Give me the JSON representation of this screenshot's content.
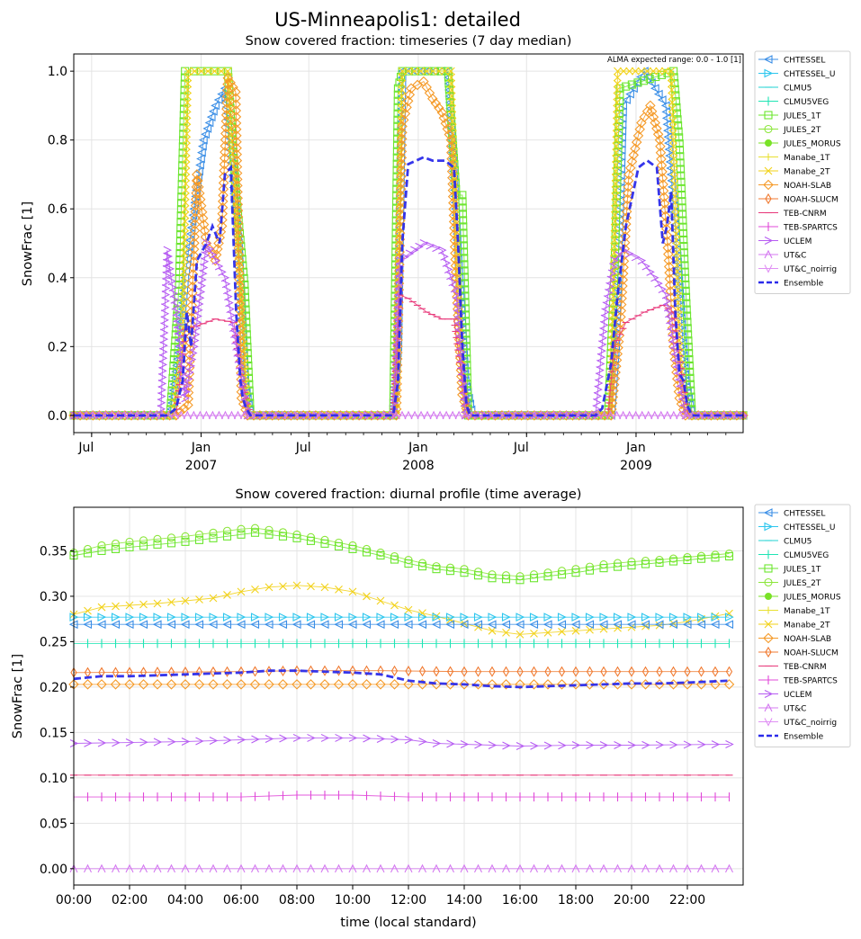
{
  "suptitle": "US-Minneapolis1: detailed",
  "legend_entries": [
    "CHTESSEL",
    "CHTESSEL_U",
    "CLMU5",
    "CLMU5VEG",
    "JULES_1T",
    "JULES_2T",
    "JULES_MORUS",
    "Manabe_1T",
    "Manabe_2T",
    "NOAH-SLAB",
    "NOAH-SLUCM",
    "TEB-CNRM",
    "TEB-SPARTCS",
    "UCLEM",
    "UT&C",
    "UT&C_noirrig",
    "Ensemble"
  ],
  "colors": {
    "CHTESSEL": "#3a8ee6",
    "CHTESSEL_U": "#2cc6ee",
    "CLMU5": "#22d3d3",
    "CLMU5VEG": "#1ee4b4",
    "JULES_1T": "#6be62e",
    "JULES_2T": "#8be63a",
    "JULES_MORUS": "#79e226",
    "Manabe_1T": "#e8e030",
    "Manabe_2T": "#f2d21a",
    "NOAH-SLAB": "#f59a28",
    "NOAH-SLUCM": "#f07a30",
    "TEB-CNRM": "#e8387a",
    "TEB-SPARTCS": "#e048d8",
    "UCLEM": "#b65cf2",
    "UT&C": "#d478f0",
    "UT&C_noirrig": "#e090f4",
    "Ensemble": "#2b2bea"
  },
  "chart_data": [
    {
      "type": "line",
      "title": "Snow covered fraction: timeseries (7 day median)",
      "xlabel": "",
      "ylabel": "SnowFrac [1]",
      "annotation": "ALMA expected range: 0.0 - 1.0 [1]",
      "x_ticks": [
        "Jul",
        "Jan\n2007",
        "Jul",
        "Jan\n2008",
        "Jul",
        "Jan\n2009"
      ],
      "yticks": [
        "0.0",
        "0.2",
        "0.4",
        "0.6",
        "0.8",
        "1.0"
      ],
      "ylim": [
        -0.05,
        1.05
      ],
      "xlim": [
        "2006-06-01",
        "2009-06-30"
      ],
      "grid": true,
      "legend": "outside-right",
      "series": [
        {
          "name": "CHTESSEL",
          "x": [
            "2006-06-01",
            "2006-11-10",
            "2006-11-25",
            "2006-12-05",
            "2006-12-20",
            "2007-01-05",
            "2007-01-25",
            "2007-02-10",
            "2007-03-05",
            "2007-03-15",
            "2007-03-25",
            "2007-06-01",
            "2007-11-20",
            "2007-11-28",
            "2007-12-05",
            "2008-01-15",
            "2008-02-20",
            "2008-03-10",
            "2008-03-20",
            "2008-04-01",
            "2008-06-01",
            "2008-11-20",
            "2008-11-28",
            "2008-12-10",
            "2009-01-15",
            "2009-02-20",
            "2009-03-10",
            "2009-03-25",
            "2009-04-05",
            "2009-06-30"
          ],
          "values": [
            0,
            0,
            0.2,
            0.4,
            0.6,
            0.8,
            0.9,
            0.95,
            0.5,
            0.1,
            0,
            0,
            0,
            0.2,
            1,
            1,
            1,
            0.4,
            0.1,
            0,
            0,
            0,
            0.2,
            0.9,
            1,
            0.9,
            0.5,
            0.1,
            0,
            0
          ]
        },
        {
          "name": "JULES_1T",
          "x": [
            "2006-06-01",
            "2006-11-10",
            "2006-11-25",
            "2006-12-05",
            "2006-12-20",
            "2007-02-15",
            "2007-03-01",
            "2007-03-15",
            "2007-03-25",
            "2007-06-01",
            "2007-11-20",
            "2007-11-28",
            "2007-12-05",
            "2008-02-20",
            "2008-03-05",
            "2008-03-15",
            "2008-03-25",
            "2008-06-01",
            "2008-11-15",
            "2008-11-25",
            "2008-12-05",
            "2009-03-05",
            "2009-03-15",
            "2009-03-25",
            "2009-04-05",
            "2009-06-30"
          ],
          "values": [
            0,
            0,
            0.38,
            1,
            1,
            1,
            0.64,
            0.38,
            0,
            0,
            0,
            0.95,
            1,
            1,
            0.64,
            0.64,
            0,
            0,
            0,
            0.38,
            0.95,
            1,
            0.79,
            0.38,
            0,
            0
          ]
        },
        {
          "name": "Manabe_2T",
          "x": [
            "2006-06-01",
            "2006-11-15",
            "2006-12-01",
            "2006-12-10",
            "2007-02-15",
            "2007-03-10",
            "2007-03-20",
            "2007-06-01",
            "2007-11-25",
            "2007-12-05",
            "2008-02-25",
            "2008-03-10",
            "2008-03-20",
            "2008-06-01",
            "2008-11-20",
            "2008-12-01",
            "2009-03-01",
            "2009-03-15",
            "2009-03-25",
            "2009-06-30"
          ],
          "values": [
            0,
            0,
            0.2,
            1,
            1,
            0.3,
            0,
            0,
            0,
            1,
            1,
            0.2,
            0,
            0,
            0,
            1,
            1,
            0.2,
            0,
            0
          ]
        },
        {
          "name": "NOAH-SLAB",
          "x": [
            "2006-06-01",
            "2006-11-20",
            "2006-12-10",
            "2006-12-25",
            "2007-01-10",
            "2007-01-25",
            "2007-02-05",
            "2007-02-15",
            "2007-02-28",
            "2007-03-10",
            "2007-03-20",
            "2007-06-01",
            "2007-11-25",
            "2007-12-05",
            "2007-12-20",
            "2008-01-10",
            "2008-01-25",
            "2008-02-10",
            "2008-02-25",
            "2008-03-05",
            "2008-03-15",
            "2008-03-25",
            "2008-06-01",
            "2008-11-20",
            "2008-12-05",
            "2008-12-20",
            "2009-01-10",
            "2009-01-25",
            "2009-02-10",
            "2009-02-25",
            "2009-03-05",
            "2009-03-15",
            "2009-03-25",
            "2009-06-30"
          ],
          "values": [
            0,
            0,
            0.03,
            0.7,
            0.5,
            0.45,
            0.55,
            0.98,
            0.94,
            0.05,
            0,
            0,
            0,
            0.84,
            0.95,
            0.97,
            0.92,
            0.88,
            0.8,
            0.38,
            0.06,
            0,
            0,
            0,
            0.25,
            0.7,
            0.85,
            0.9,
            0.8,
            0.45,
            0.2,
            0.05,
            0,
            0
          ]
        },
        {
          "name": "TEB-CNRM",
          "x": [
            "2006-06-01",
            "2006-11-20",
            "2006-12-05",
            "2006-12-25",
            "2007-01-25",
            "2007-02-25",
            "2007-03-10",
            "2007-03-25",
            "2007-06-01",
            "2007-11-20",
            "2007-12-01",
            "2007-12-15",
            "2008-01-15",
            "2008-02-10",
            "2008-03-01",
            "2008-03-15",
            "2008-03-25",
            "2008-06-01",
            "2008-11-15",
            "2008-11-25",
            "2008-12-15",
            "2009-01-15",
            "2009-02-15",
            "2009-03-05",
            "2009-03-20",
            "2009-03-30",
            "2009-06-30"
          ],
          "values": [
            0,
            0,
            0.25,
            0.26,
            0.28,
            0.27,
            0.1,
            0,
            0,
            0,
            0.35,
            0.34,
            0.3,
            0.28,
            0.28,
            0.1,
            0,
            0,
            0,
            0.2,
            0.27,
            0.3,
            0.32,
            0.3,
            0.1,
            0,
            0
          ]
        },
        {
          "name": "UCLEM",
          "x": [
            "2006-06-01",
            "2006-10-25",
            "2006-11-05",
            "2006-11-20",
            "2006-12-05",
            "2006-12-20",
            "2007-01-10",
            "2007-02-10",
            "2007-03-01",
            "2007-03-20",
            "2007-06-01",
            "2007-11-20",
            "2007-12-01",
            "2008-01-10",
            "2008-02-10",
            "2008-03-05",
            "2008-03-20",
            "2008-06-01",
            "2008-10-25",
            "2008-11-10",
            "2008-11-25",
            "2008-12-10",
            "2009-01-10",
            "2009-02-01",
            "2009-02-20",
            "2009-03-10",
            "2009-03-25",
            "2009-06-30"
          ],
          "values": [
            0,
            0,
            0.48,
            0.3,
            0.05,
            0.2,
            0.5,
            0.4,
            0.2,
            0,
            0,
            0,
            0.45,
            0.5,
            0.48,
            0.35,
            0,
            0,
            0,
            0.3,
            0.45,
            0.48,
            0.45,
            0.4,
            0.35,
            0.15,
            0,
            0
          ]
        },
        {
          "name": "UT&C",
          "x": [
            "2006-06-01",
            "2009-06-30"
          ],
          "values": [
            0,
            0
          ]
        },
        {
          "name": "Ensemble",
          "x": [
            "2006-06-01",
            "2006-11-05",
            "2006-11-20",
            "2006-12-01",
            "2006-12-08",
            "2006-12-15",
            "2006-12-25",
            "2007-01-10",
            "2007-01-20",
            "2007-02-01",
            "2007-02-10",
            "2007-02-20",
            "2007-03-01",
            "2007-03-08",
            "2007-03-12",
            "2007-03-18",
            "2007-03-25",
            "2007-06-01",
            "2007-11-20",
            "2007-11-28",
            "2007-12-05",
            "2007-12-15",
            "2008-01-10",
            "2008-01-25",
            "2008-02-15",
            "2008-03-01",
            "2008-03-08",
            "2008-03-15",
            "2008-03-22",
            "2008-03-28",
            "2008-06-01",
            "2008-10-25",
            "2008-11-05",
            "2008-11-20",
            "2008-12-01",
            "2008-12-15",
            "2009-01-05",
            "2009-01-20",
            "2009-02-05",
            "2009-02-15",
            "2009-02-22",
            "2009-03-01",
            "2009-03-08",
            "2009-03-15",
            "2009-03-22",
            "2009-03-28",
            "2009-04-05",
            "2009-06-30"
          ],
          "values": [
            0,
            0,
            0.02,
            0.1,
            0.3,
            0.2,
            0.45,
            0.5,
            0.55,
            0.5,
            0.7,
            0.72,
            0.3,
            0.1,
            0.05,
            0.02,
            0,
            0,
            0,
            0.1,
            0.5,
            0.73,
            0.75,
            0.74,
            0.74,
            0.72,
            0.5,
            0.2,
            0.03,
            0,
            0,
            0,
            0.02,
            0.15,
            0.35,
            0.55,
            0.72,
            0.74,
            0.72,
            0.5,
            0.55,
            0.65,
            0.3,
            0.12,
            0.1,
            0.03,
            0,
            0
          ]
        }
      ]
    },
    {
      "type": "line",
      "title": "Snow covered fraction: diurnal profile (time average)",
      "xlabel": "time (local standard)",
      "ylabel": "SnowFrac [1]",
      "x_ticks": [
        "00:00",
        "02:00",
        "04:00",
        "06:00",
        "08:00",
        "10:00",
        "12:00",
        "14:00",
        "16:00",
        "18:00",
        "20:00",
        "22:00"
      ],
      "yticks": [
        "0.00",
        "0.05",
        "0.10",
        "0.15",
        "0.20",
        "0.25",
        "0.30",
        "0.35"
      ],
      "ylim": [
        -0.018,
        0.398
      ],
      "xlim": [
        0,
        24
      ],
      "grid": true,
      "legend": "outside-right",
      "series": [
        {
          "name": "JULES_2T",
          "x": [
            0,
            1,
            2,
            3,
            4,
            5,
            6,
            6.5,
            7,
            8,
            9,
            10,
            11,
            12,
            13,
            14,
            15,
            16,
            17,
            18,
            19,
            20,
            21,
            22,
            23.5
          ],
          "values": [
            0.348,
            0.356,
            0.36,
            0.363,
            0.366,
            0.37,
            0.374,
            0.375,
            0.373,
            0.368,
            0.362,
            0.356,
            0.348,
            0.34,
            0.333,
            0.33,
            0.324,
            0.322,
            0.326,
            0.33,
            0.335,
            0.338,
            0.34,
            0.343,
            0.347
          ]
        },
        {
          "name": "JULES_1T",
          "x": [
            0,
            1,
            2,
            3,
            4,
            5,
            6,
            6.5,
            7,
            8,
            9,
            10,
            11,
            12,
            13,
            14,
            15,
            16,
            17,
            18,
            19,
            20,
            21,
            22,
            23.5
          ],
          "values": [
            0.345,
            0.35,
            0.354,
            0.357,
            0.36,
            0.364,
            0.368,
            0.37,
            0.368,
            0.364,
            0.358,
            0.352,
            0.345,
            0.336,
            0.33,
            0.326,
            0.32,
            0.318,
            0.322,
            0.326,
            0.331,
            0.334,
            0.337,
            0.34,
            0.344
          ]
        },
        {
          "name": "Manabe_2T",
          "x": [
            0,
            1,
            2,
            3,
            4,
            5,
            6,
            7,
            8,
            9,
            10,
            11,
            12,
            13,
            14,
            15,
            16,
            17,
            18,
            19,
            20,
            21,
            22,
            23.5
          ],
          "values": [
            0.28,
            0.288,
            0.29,
            0.292,
            0.295,
            0.298,
            0.305,
            0.31,
            0.312,
            0.31,
            0.305,
            0.295,
            0.285,
            0.278,
            0.27,
            0.262,
            0.258,
            0.26,
            0.262,
            0.264,
            0.266,
            0.268,
            0.272,
            0.281
          ]
        },
        {
          "name": "CHTESSEL_U",
          "x": [
            0,
            23.5
          ],
          "values": [
            0.277,
            0.277
          ]
        },
        {
          "name": "CHTESSEL",
          "x": [
            0,
            23.5
          ],
          "values": [
            0.269,
            0.269
          ]
        },
        {
          "name": "CLMU5VEG",
          "x": [
            0,
            23.5
          ],
          "values": [
            0.248,
            0.248
          ]
        },
        {
          "name": "NOAH-SLUCM",
          "x": [
            0,
            6,
            8,
            11,
            14,
            16,
            23.5
          ],
          "values": [
            0.216,
            0.217,
            0.218,
            0.218,
            0.217,
            0.217,
            0.217
          ]
        },
        {
          "name": "NOAH-SLAB",
          "x": [
            0,
            23.5
          ],
          "values": [
            0.203,
            0.203
          ]
        },
        {
          "name": "Ensemble",
          "x": [
            0,
            1,
            2,
            4,
            6,
            7,
            8,
            10,
            11,
            12,
            13,
            14,
            15,
            16,
            17,
            18,
            19,
            20,
            21,
            22,
            23.5
          ],
          "values": [
            0.209,
            0.212,
            0.212,
            0.214,
            0.216,
            0.218,
            0.218,
            0.216,
            0.214,
            0.207,
            0.204,
            0.203,
            0.201,
            0.2,
            0.201,
            0.202,
            0.203,
            0.204,
            0.204,
            0.205,
            0.207
          ]
        },
        {
          "name": "UCLEM",
          "x": [
            0,
            4,
            6,
            8,
            10,
            12,
            13,
            14,
            16,
            18,
            20,
            23.5
          ],
          "values": [
            0.138,
            0.14,
            0.142,
            0.144,
            0.144,
            0.142,
            0.138,
            0.137,
            0.135,
            0.136,
            0.136,
            0.137
          ]
        },
        {
          "name": "TEB-CNRM",
          "x": [
            0,
            23.5
          ],
          "values": [
            0.103,
            0.103
          ]
        },
        {
          "name": "TEB-SPARTCS",
          "x": [
            0,
            6,
            8,
            10,
            12,
            14,
            23.5
          ],
          "values": [
            0.079,
            0.079,
            0.081,
            0.081,
            0.079,
            0.079,
            0.079
          ]
        },
        {
          "name": "UT&C",
          "x": [
            0,
            23.5
          ],
          "values": [
            0,
            0
          ]
        }
      ]
    }
  ]
}
